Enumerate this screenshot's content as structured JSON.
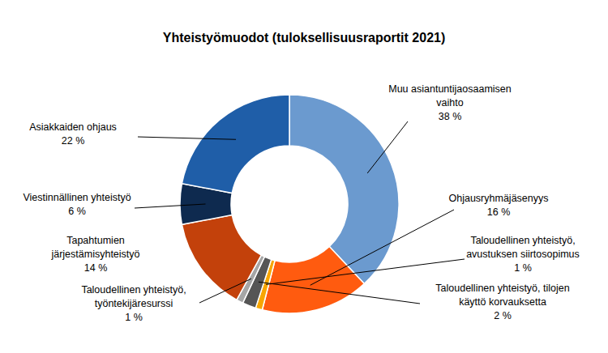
{
  "chart_data": {
    "type": "pie",
    "title": "Yhteistyömuodot (tuloksellisuusraportit 2021)",
    "categories": [
      "Muu asiantuntijaosaamisen\nvaihto",
      "Ohjausryhmäjäsenyys",
      "Taloudellinen yhteistyö,\navustuksen siirtosopimus",
      "Taloudellinen yhteistyö, tilojen\nkäyttö korvauksetta",
      "Taloudellinen yhteistyö,\ntyöntekijäresurssi",
      "Tapahtumien\njärjestämisyhteistyö",
      "Viestinnällinen yhteistyö",
      "Asiakkaiden ohjaus"
    ],
    "values": [
      38,
      16,
      1,
      2,
      1,
      14,
      6,
      22
    ],
    "value_labels": [
      "38 %",
      "16 %",
      "1 %",
      "2 %",
      "1 %",
      "14 %",
      "6 %",
      "22 %"
    ],
    "colors": [
      "#6b9acf",
      "#ff5b0f",
      "#f7a600",
      "#555555",
      "#a6a6a6",
      "#c3410b",
      "#0e2a4f",
      "#1f5ea8"
    ],
    "data_labels": true
  }
}
